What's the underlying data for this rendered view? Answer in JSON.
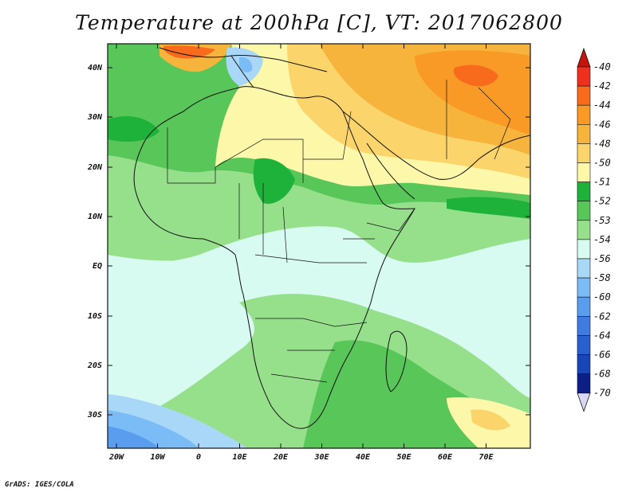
{
  "title": "Temperature at 200hPa [C], VT: 2017062800",
  "credit": "GrADS: IGES/COLA",
  "map": {
    "lat_labels": [
      "40N",
      "30N",
      "20N",
      "10N",
      "EQ",
      "10S",
      "20S",
      "30S"
    ],
    "lon_labels": [
      "20W",
      "10W",
      "0",
      "10E",
      "20E",
      "30E",
      "40E",
      "50E",
      "60E",
      "70E"
    ]
  },
  "colorbar": {
    "labels": [
      "-40",
      "-42",
      "-44",
      "-46",
      "-48",
      "-50",
      "-51",
      "-52",
      "-53",
      "-54",
      "-56",
      "-58",
      "-60",
      "-62",
      "-64",
      "-66",
      "-68",
      "-70"
    ],
    "colors": [
      "#f0301e",
      "#f86a1c",
      "#f99a26",
      "#f7b43c",
      "#fbd56b",
      "#fdf7a9",
      "#1fb23b",
      "#58c658",
      "#96e08c",
      "#d8fbf1",
      "#a9d7f8",
      "#7cbcf6",
      "#5a9cee",
      "#3f7be0",
      "#2a5fd0",
      "#1846b8",
      "#0c1f86"
    ],
    "top_arrow_color": "#c4140c",
    "bottom_arrow_color": "#d8d8f4"
  }
}
